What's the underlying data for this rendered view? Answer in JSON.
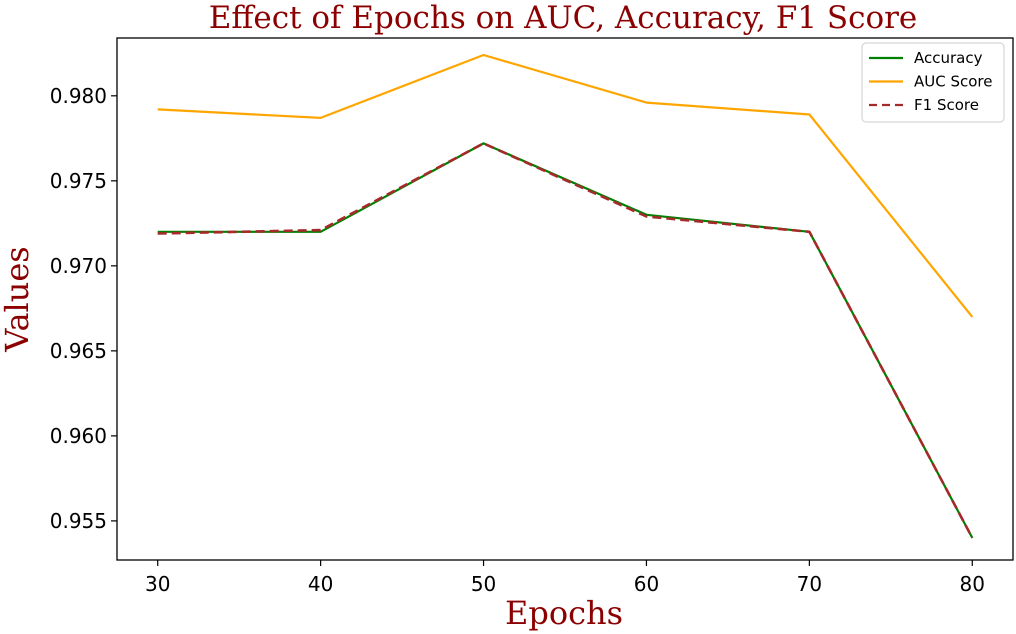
{
  "chart_data": {
    "type": "line",
    "title": "Effect of Epochs on AUC, Accuracy, F1 Score",
    "xlabel": "Epochs",
    "ylabel": "Values",
    "x": [
      30,
      40,
      50,
      60,
      70,
      80
    ],
    "xticks": [
      "30",
      "40",
      "50",
      "60",
      "70",
      "80"
    ],
    "yticks": [
      "0.955",
      "0.960",
      "0.965",
      "0.970",
      "0.975",
      "0.980"
    ],
    "ylim": [
      0.9527,
      0.9834
    ],
    "xlim": [
      27.5,
      82.5
    ],
    "grid": false,
    "legend_position": "top-right",
    "series": [
      {
        "name": "Accuracy",
        "color": "#008000",
        "style": "solid",
        "values": [
          0.972,
          0.972,
          0.9772,
          0.973,
          0.972,
          0.954
        ]
      },
      {
        "name": "AUC Score",
        "color": "#ffa500",
        "style": "solid",
        "values": [
          0.9792,
          0.9787,
          0.9824,
          0.9796,
          0.9789,
          0.967
        ]
      },
      {
        "name": "F1 Score",
        "color": "#a52a2a",
        "style": "dashed",
        "values": [
          0.9719,
          0.9721,
          0.9772,
          0.9729,
          0.972,
          0.954
        ]
      }
    ]
  }
}
